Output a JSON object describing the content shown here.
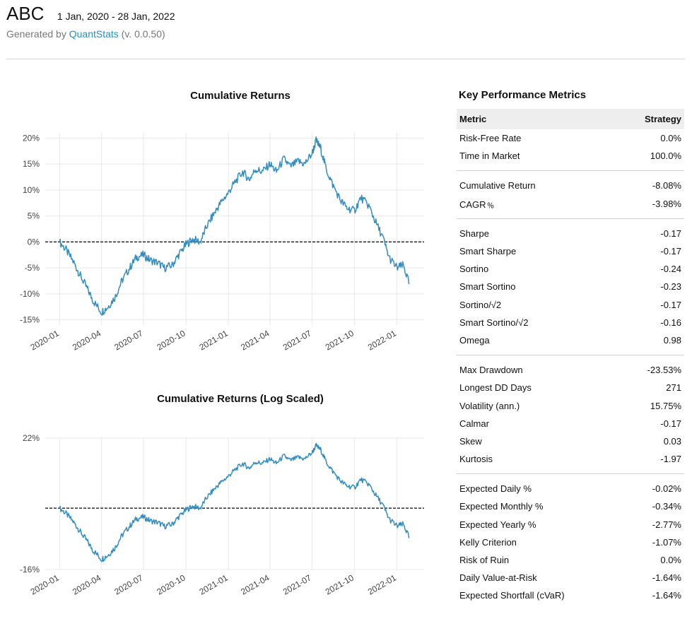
{
  "header": {
    "ticker": "ABC",
    "date_range": "1 Jan, 2020 - 28 Jan, 2022",
    "generated_prefix": "Generated by ",
    "generated_brand": "QuantStats",
    "generated_suffix": " (v. 0.0.50)"
  },
  "metrics": {
    "title": "Key Performance Metrics",
    "col_metric": "Metric",
    "col_strategy": "Strategy",
    "groups": [
      [
        [
          "Risk-Free Rate",
          "0.0%"
        ],
        [
          "Time in Market",
          "100.0%"
        ]
      ],
      [
        [
          "Cumulative Return",
          "-8.08%"
        ],
        [
          "CAGR﹪",
          "-3.98%"
        ]
      ],
      [
        [
          "Sharpe",
          "-0.17"
        ],
        [
          "Smart Sharpe",
          "-0.17"
        ],
        [
          "Sortino",
          "-0.24"
        ],
        [
          "Smart Sortino",
          "-0.23"
        ],
        [
          "Sortino/√2",
          "-0.17"
        ],
        [
          "Smart Sortino/√2",
          "-0.16"
        ],
        [
          "Omega",
          "0.98"
        ]
      ],
      [
        [
          "Max Drawdown",
          "-23.53%"
        ],
        [
          "Longest DD Days",
          "271"
        ],
        [
          "Volatility (ann.)",
          "15.75%"
        ],
        [
          "Calmar",
          "-0.17"
        ],
        [
          "Skew",
          "0.03"
        ],
        [
          "Kurtosis",
          "-1.97"
        ]
      ],
      [
        [
          "Expected Daily %",
          "-0.02%"
        ],
        [
          "Expected Monthly %",
          "-0.34%"
        ],
        [
          "Expected Yearly %",
          "-2.77%"
        ],
        [
          "Kelly Criterion",
          "-1.07%"
        ],
        [
          "Risk of Ruin",
          "0.0%"
        ],
        [
          "Daily Value-at-Risk",
          "-1.64%"
        ],
        [
          "Expected Shortfall (cVaR)",
          "-1.64%"
        ]
      ]
    ]
  },
  "colors": {
    "line": "#348dc1",
    "grid": "#e8e8e8",
    "baseline": "#000000"
  },
  "chart_data": [
    {
      "type": "line",
      "title": "Cumulative Returns",
      "y_unit": "%",
      "ylim": [
        -16,
        21
      ],
      "y_ticks": [
        20,
        15,
        10,
        5,
        0,
        -5,
        -10,
        -15
      ],
      "y_tick_labels": [
        "20%",
        "15%",
        "10%",
        "5%",
        "0%",
        "-5%",
        "-10%",
        "-15%"
      ],
      "x_ticks": [
        "2020-01",
        "2020-04",
        "2020-07",
        "2020-10",
        "2021-01",
        "2021-04",
        "2021-07",
        "2021-10",
        "2022-01"
      ],
      "x_range": [
        "2019-12-01",
        "2022-03-01"
      ],
      "grid": true,
      "reference_line": 0,
      "series": [
        {
          "x": [
            "2020-01-01",
            "2020-01-15",
            "2020-02-01",
            "2020-02-15",
            "2020-03-01",
            "2020-03-15",
            "2020-04-01",
            "2020-04-15",
            "2020-05-01",
            "2020-05-15",
            "2020-06-01",
            "2020-06-15",
            "2020-07-01",
            "2020-07-15",
            "2020-08-01",
            "2020-08-15",
            "2020-09-01",
            "2020-09-15",
            "2020-10-01",
            "2020-10-15",
            "2020-11-01",
            "2020-11-15",
            "2020-12-01",
            "2020-12-15",
            "2021-01-01",
            "2021-01-15",
            "2021-02-01",
            "2021-02-15",
            "2021-03-01",
            "2021-03-15",
            "2021-04-01",
            "2021-04-15",
            "2021-05-01",
            "2021-05-15",
            "2021-06-01",
            "2021-06-15",
            "2021-07-01",
            "2021-07-10",
            "2021-07-20",
            "2021-08-01",
            "2021-08-15",
            "2021-09-01",
            "2021-09-15",
            "2021-10-01",
            "2021-10-15",
            "2021-11-01",
            "2021-11-15",
            "2021-12-01",
            "2021-12-15",
            "2022-01-01",
            "2022-01-15",
            "2022-01-28"
          ],
          "values": [
            0.0,
            -1.5,
            -4.0,
            -6.5,
            -9.0,
            -11.5,
            -13.5,
            -12.5,
            -10.5,
            -7.5,
            -5.0,
            -3.0,
            -2.5,
            -3.5,
            -4.0,
            -5.0,
            -4.5,
            -2.5,
            -0.5,
            0.5,
            0.0,
            3.0,
            5.5,
            7.5,
            9.5,
            11.5,
            13.5,
            12.0,
            14.0,
            13.5,
            15.0,
            13.5,
            16.0,
            14.5,
            15.5,
            15.0,
            17.0,
            19.5,
            18.0,
            14.0,
            11.0,
            8.0,
            6.5,
            6.0,
            8.5,
            7.0,
            4.0,
            1.0,
            -3.0,
            -5.0,
            -4.5,
            -8.1
          ]
        }
      ]
    },
    {
      "type": "line",
      "title": "Cumulative Returns (Log Scaled)",
      "y_scale": "log",
      "y_tick_labels": [
        "22%",
        "-16%"
      ],
      "y_ticks": [
        22,
        -16
      ],
      "x_ticks": [
        "2020-01",
        "2020-04",
        "2020-07",
        "2020-10",
        "2021-01",
        "2021-04",
        "2021-07",
        "2021-10",
        "2022-01"
      ],
      "x_range": [
        "2019-12-01",
        "2022-03-01"
      ],
      "grid": true,
      "reference_line": 0,
      "same_series_as_chart": 0
    }
  ]
}
